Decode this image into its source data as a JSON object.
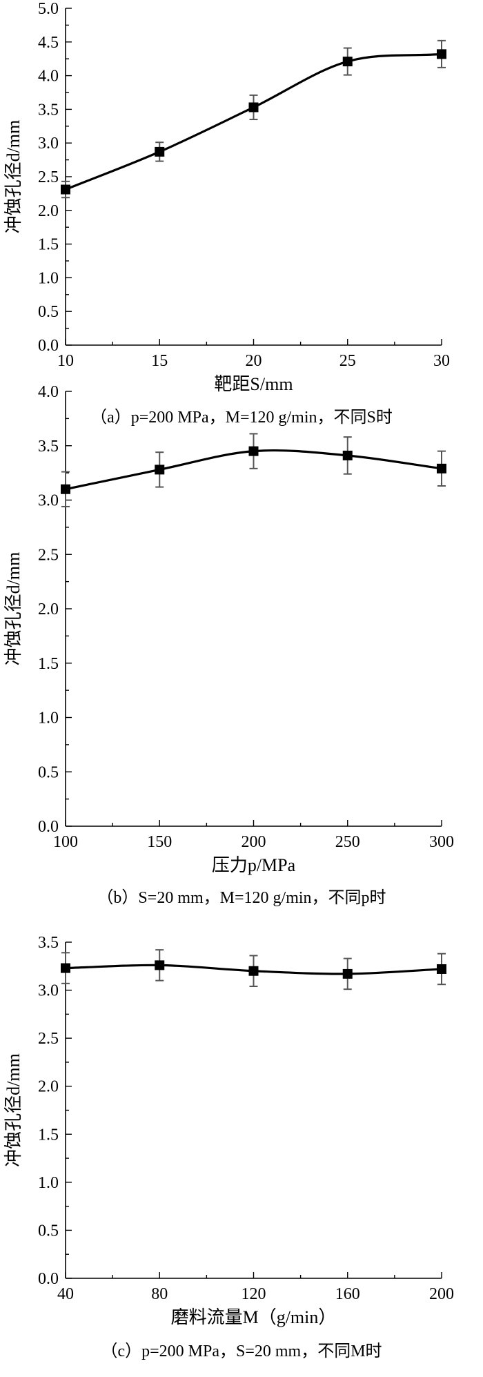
{
  "chart_data": [
    {
      "type": "line",
      "xlabel": "靶距S/mm",
      "ylabel": "冲蚀孔径d/mm",
      "caption": "（a）p=200 MPa，M=120 g/min，不同S时",
      "xlim": [
        10,
        30
      ],
      "ylim": [
        0.0,
        5.0
      ],
      "xticks": [
        "10",
        "15",
        "20",
        "25",
        "30"
      ],
      "yticks": [
        "0.0",
        "0.5",
        "1.0",
        "1.5",
        "2.0",
        "2.5",
        "3.0",
        "3.5",
        "4.0",
        "4.5",
        "5.0"
      ],
      "grid": false,
      "series": [
        {
          "x": [
            10,
            15,
            20,
            25,
            30
          ],
          "y": [
            2.31,
            2.87,
            3.53,
            4.21,
            4.32
          ],
          "err": [
            0.12,
            0.14,
            0.18,
            0.2,
            0.2
          ]
        }
      ]
    },
    {
      "type": "line",
      "xlabel": "压力p/MPa",
      "ylabel": "冲蚀孔径d/mm",
      "caption": "（b）S=20 mm，M=120 g/min，不同p时",
      "xlim": [
        100,
        300
      ],
      "ylim": [
        0.0,
        4.0
      ],
      "xticks": [
        "100",
        "150",
        "200",
        "250",
        "300"
      ],
      "yticks": [
        "0.0",
        "0.5",
        "1.0",
        "1.5",
        "2.0",
        "2.5",
        "3.0",
        "3.5",
        "4.0"
      ],
      "grid": false,
      "series": [
        {
          "x": [
            100,
            150,
            200,
            250,
            300
          ],
          "y": [
            3.1,
            3.28,
            3.45,
            3.41,
            3.29
          ],
          "err": [
            0.16,
            0.16,
            0.16,
            0.17,
            0.16
          ]
        }
      ]
    },
    {
      "type": "line",
      "xlabel": "磨料流量M（g/min）",
      "ylabel": "冲蚀孔径d/mm",
      "caption": "（c）p=200 MPa，S=20 mm，不同M时",
      "xlim": [
        40,
        200
      ],
      "ylim": [
        0.0,
        3.5
      ],
      "xticks": [
        "40",
        "80",
        "120",
        "160",
        "200"
      ],
      "yticks": [
        "0.0",
        "0.5",
        "1.0",
        "1.5",
        "2.0",
        "2.5",
        "3.0",
        "3.5"
      ],
      "grid": false,
      "series": [
        {
          "x": [
            40,
            80,
            120,
            160,
            200
          ],
          "y": [
            3.23,
            3.26,
            3.2,
            3.17,
            3.22
          ],
          "err": [
            0.16,
            0.16,
            0.16,
            0.16,
            0.16
          ]
        }
      ]
    }
  ]
}
